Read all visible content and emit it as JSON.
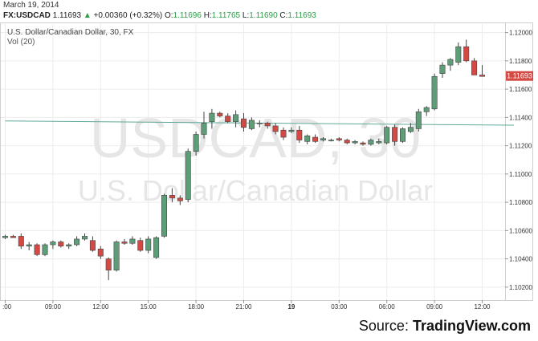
{
  "header": {
    "date": "March 19, 2014",
    "symbol": "FX:USDCAD",
    "last": "1.11693",
    "change_arrow": "▲",
    "change": "+0.00360 (+0.32%)",
    "open_label": "O:",
    "open": "1.11696",
    "high_label": "H:",
    "high": "1.11765",
    "low_label": "L:",
    "low": "1.11690",
    "close_label": "C:",
    "close": "1.11693"
  },
  "source": {
    "prefix": "Source: ",
    "name": "TradingView.com"
  },
  "colors": {
    "up": "#5d9e78",
    "down": "#d24a43",
    "trend": "#5fa898",
    "watermark": "#e4e4e4",
    "grid": "#e9e9e9"
  },
  "chart_data": {
    "type": "candlestick",
    "title": "U.S. Dollar/Canadian Dollar, 30, FX",
    "volume_label": "Vol (20)",
    "watermark": [
      "USDCAD, 30",
      "U.S. Dollar/Canadian Dollar"
    ],
    "last_price_label": "1.11693",
    "ylim": [
      1.1012,
      1.1206
    ],
    "yticks": [
      "1.12000",
      "1.11800",
      "1.11600",
      "1.11400",
      "1.11200",
      "1.11000",
      "1.10800",
      "1.10600",
      "1.10400",
      "1.10200"
    ],
    "xticks": [
      {
        "label": ":00",
        "index": 0
      },
      {
        "label": "09:00",
        "index": 6
      },
      {
        "label": "12:00",
        "index": 12
      },
      {
        "label": "15:00",
        "index": 18
      },
      {
        "label": "18:00",
        "index": 24
      },
      {
        "label": "21:00",
        "index": 30
      },
      {
        "label": "19",
        "index": 36
      },
      {
        "label": "03:00",
        "index": 42
      },
      {
        "label": "06:00",
        "index": 48
      },
      {
        "label": "09:00",
        "index": 54
      },
      {
        "label": "12:00",
        "index": 60
      }
    ],
    "trendline": [
      [
        0,
        1.11375
      ],
      [
        64,
        1.11345
      ]
    ],
    "candles": [
      [
        1.1055,
        1.1057,
        1.1054,
        1.1056
      ],
      [
        1.1056,
        1.1057,
        1.1055,
        1.1055
      ],
      [
        1.1056,
        1.1058,
        1.1047,
        1.1049
      ],
      [
        1.1049,
        1.1052,
        1.1046,
        1.105
      ],
      [
        1.105,
        1.1051,
        1.1042,
        1.1043
      ],
      [
        1.1043,
        1.1051,
        1.1042,
        1.105
      ],
      [
        1.105,
        1.1053,
        1.1047,
        1.1052
      ],
      [
        1.1052,
        1.1053,
        1.1048,
        1.1049
      ],
      [
        1.1049,
        1.1051,
        1.1047,
        1.105
      ],
      [
        1.105,
        1.1056,
        1.1049,
        1.1054
      ],
      [
        1.1054,
        1.1058,
        1.1053,
        1.1056
      ],
      [
        1.1053,
        1.1056,
        1.1045,
        1.1046
      ],
      [
        1.1047,
        1.1049,
        1.104,
        1.1042
      ],
      [
        1.104,
        1.1041,
        1.1025,
        1.1032
      ],
      [
        1.1032,
        1.1053,
        1.1031,
        1.1052
      ],
      [
        1.1052,
        1.1054,
        1.105,
        1.1051
      ],
      [
        1.1051,
        1.1056,
        1.105,
        1.1054
      ],
      [
        1.1053,
        1.1055,
        1.1045,
        1.1046
      ],
      [
        1.1046,
        1.1056,
        1.1044,
        1.1054
      ],
      [
        1.1041,
        1.1056,
        1.104,
        1.1055
      ],
      [
        1.1056,
        1.1086,
        1.1055,
        1.1085
      ],
      [
        1.1085,
        1.109,
        1.108,
        1.1083
      ],
      [
        1.1083,
        1.1085,
        1.1078,
        1.1081
      ],
      [
        1.1082,
        1.1118,
        1.108,
        1.1116
      ],
      [
        1.1116,
        1.113,
        1.1113,
        1.1128
      ],
      [
        1.1128,
        1.1144,
        1.1125,
        1.1136
      ],
      [
        1.1137,
        1.1146,
        1.1132,
        1.1143
      ],
      [
        1.1143,
        1.1144,
        1.114,
        1.1141
      ],
      [
        1.1141,
        1.1143,
        1.1136,
        1.1137
      ],
      [
        1.1137,
        1.1145,
        1.1133,
        1.1142
      ],
      [
        1.1139,
        1.1143,
        1.113,
        1.1133
      ],
      [
        1.1132,
        1.114,
        1.1131,
        1.1138
      ],
      [
        1.1136,
        1.1138,
        1.1133,
        1.1136
      ],
      [
        1.1136,
        1.1137,
        1.1132,
        1.1134
      ],
      [
        1.1134,
        1.1136,
        1.1128,
        1.113
      ],
      [
        1.1131,
        1.1133,
        1.1124,
        1.1126
      ],
      [
        1.113,
        1.1133,
        1.1129,
        1.1131
      ],
      [
        1.1131,
        1.1134,
        1.1122,
        1.1124
      ],
      [
        1.1123,
        1.1128,
        1.1121,
        1.1127
      ],
      [
        1.1126,
        1.1128,
        1.1122,
        1.1123
      ],
      [
        1.1124,
        1.1126,
        1.1123,
        1.1125
      ],
      [
        1.1124,
        1.1125,
        1.1123,
        1.1124
      ],
      [
        1.1125,
        1.1126,
        1.1123,
        1.1124
      ],
      [
        1.1124,
        1.1125,
        1.1121,
        1.1122
      ],
      [
        1.1122,
        1.1124,
        1.1121,
        1.1123
      ],
      [
        1.1122,
        1.1123,
        1.112,
        1.1121
      ],
      [
        1.1121,
        1.1125,
        1.112,
        1.1124
      ],
      [
        1.1122,
        1.1125,
        1.1121,
        1.1123
      ],
      [
        1.1122,
        1.1134,
        1.1121,
        1.1133
      ],
      [
        1.1133,
        1.1135,
        1.112,
        1.1123
      ],
      [
        1.1123,
        1.1133,
        1.1122,
        1.1132
      ],
      [
        1.113,
        1.1136,
        1.1129,
        1.1133
      ],
      [
        1.1132,
        1.1146,
        1.113,
        1.1144
      ],
      [
        1.1144,
        1.1148,
        1.1141,
        1.1147
      ],
      [
        1.1146,
        1.1171,
        1.1145,
        1.1169
      ],
      [
        1.1171,
        1.1179,
        1.1168,
        1.1177
      ],
      [
        1.1177,
        1.1182,
        1.1173,
        1.1181
      ],
      [
        1.1179,
        1.1193,
        1.1177,
        1.119
      ],
      [
        1.119,
        1.1195,
        1.1179,
        1.118
      ],
      [
        1.118,
        1.1182,
        1.117,
        1.117
      ],
      [
        1.117,
        1.1177,
        1.1169,
        1.1169
      ]
    ]
  }
}
